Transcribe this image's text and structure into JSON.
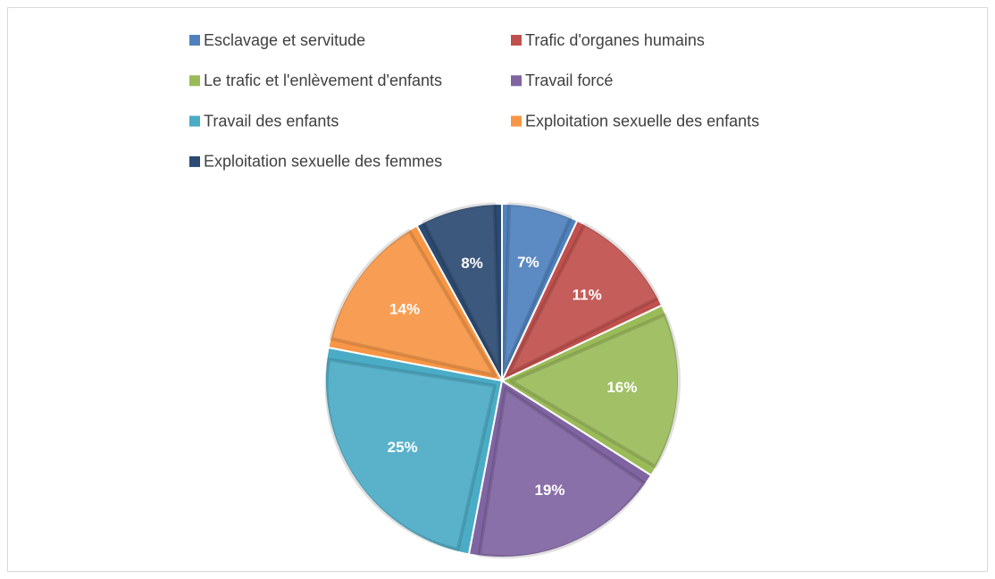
{
  "chart_data": {
    "type": "pie",
    "categories": [
      "Esclavage et servitude",
      "Trafic d'organes humains",
      "Le trafic et l'enlèvement d'enfants",
      "Travail forcé",
      "Travail des enfants",
      "Exploitation sexuelle des enfants",
      "Exploitation sexuelle des femmes"
    ],
    "values": [
      7,
      11,
      16,
      19,
      25,
      14,
      8
    ],
    "value_labels": [
      "7%",
      "11%",
      "16%",
      "19%",
      "25%",
      "14%",
      "8%"
    ],
    "colors": [
      "#4f81bd",
      "#c0504d",
      "#9bbb59",
      "#8064a2",
      "#4bacc6",
      "#f79646",
      "#2c4a72"
    ],
    "legend": "top"
  }
}
